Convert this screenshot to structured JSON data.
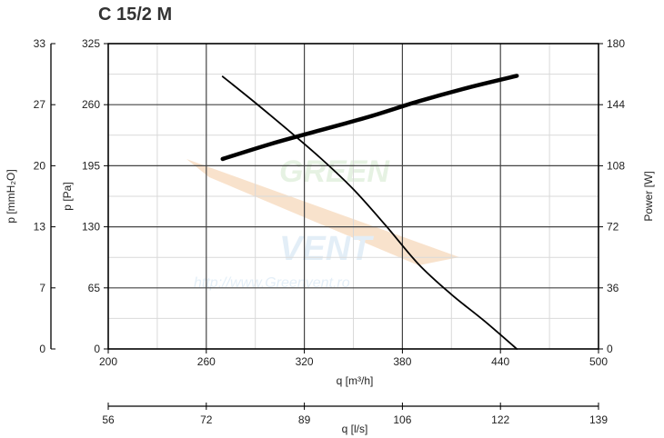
{
  "chart_data": {
    "type": "line",
    "title": "C 15/2 M",
    "watermark": "http://www.Greenvent.ro",
    "x_axis": {
      "label": "q [m³/h]",
      "range": [
        200,
        500
      ],
      "ticks": [
        200,
        260,
        320,
        380,
        440,
        500
      ]
    },
    "x_axis_secondary": {
      "label": "q [l/s]",
      "ticks": [
        "56",
        "72",
        "89",
        "106",
        "122",
        "139"
      ]
    },
    "y_axis": {
      "label": "p [Pa]",
      "range": [
        0,
        325
      ],
      "ticks": [
        0,
        65,
        130,
        195,
        260,
        325
      ]
    },
    "y_axis_outer": {
      "label": "p [mmH₂O]",
      "ticks": [
        "0",
        "7",
        "13",
        "20",
        "27",
        "33"
      ]
    },
    "y_axis_right": {
      "label": "Power [W]",
      "range": [
        0,
        180
      ],
      "ticks": [
        0,
        36,
        72,
        108,
        144,
        180
      ]
    },
    "grid": true,
    "series": [
      {
        "axis": "left",
        "color": "#000000",
        "x": [
          270,
          290,
          310,
          330,
          350,
          370,
          390,
          410,
          430,
          450
        ],
        "y": [
          290,
          262,
          233,
          203,
          170,
          131,
          90,
          58,
          30,
          0
        ]
      },
      {
        "axis": "right",
        "color": "#000000",
        "x": [
          270,
          300,
          330,
          360,
          390,
          420,
          450
        ],
        "y": [
          112,
          121,
          129,
          137,
          146,
          154,
          161
        ]
      }
    ]
  }
}
